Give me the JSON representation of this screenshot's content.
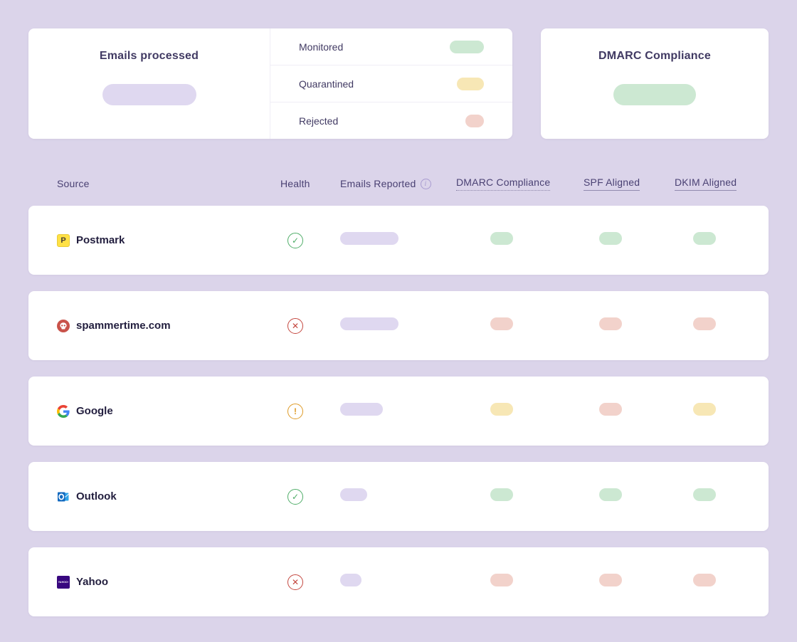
{
  "colors": {
    "page_bg": "#DBD4EA",
    "card_bg": "#FFFFFF",
    "title_text": "#413A63",
    "header_text": "#4A4173",
    "row_text": "#221E3E",
    "pill_lavender": "#DFD8F0",
    "pill_green": "#CCE8D2",
    "pill_yellow": "#F7E7B5",
    "pill_red": "#F2D2CB",
    "health_ok": "#4FAD68",
    "health_error": "#C4473F",
    "health_warning": "#DE9A26"
  },
  "summary": {
    "emails_processed": {
      "title": "Emails processed"
    },
    "breakdown": [
      {
        "label": "Monitored",
        "status": "pass",
        "pill_width": 48
      },
      {
        "label": "Quarantined",
        "status": "warn",
        "pill_width": 38
      },
      {
        "label": "Rejected",
        "status": "fail",
        "pill_width": 26
      }
    ],
    "dmarc_compliance": {
      "title": "DMARC Compliance"
    }
  },
  "table": {
    "columns": {
      "source": "Source",
      "health": "Health",
      "emails": "Emails Reported",
      "dmarc": "DMARC Compliance",
      "spf": "SPF Aligned",
      "dkim": "DKIM Aligned"
    },
    "health_glyphs": {
      "ok": "✓",
      "error": "✕",
      "warning": "!"
    },
    "rows": [
      {
        "source": "Postmark",
        "icon": "postmark-logo",
        "health": "ok",
        "emails_pill_width": 82,
        "dmarc": "pass",
        "spf": "pass",
        "dkim": "pass"
      },
      {
        "source": "spammertime.com",
        "icon": "spammertime-logo",
        "health": "error",
        "emails_pill_width": 82,
        "dmarc": "fail",
        "spf": "fail",
        "dkim": "fail"
      },
      {
        "source": "Google",
        "icon": "google-logo",
        "health": "warning",
        "emails_pill_width": 60,
        "dmarc": "warn",
        "spf": "fail",
        "dkim": "warn"
      },
      {
        "source": "Outlook",
        "icon": "outlook-logo",
        "health": "ok",
        "emails_pill_width": 38,
        "dmarc": "pass",
        "spf": "pass",
        "dkim": "pass"
      },
      {
        "source": "Yahoo",
        "icon": "yahoo-logo",
        "health": "error",
        "emails_pill_width": 30,
        "dmarc": "fail",
        "spf": "fail",
        "dkim": "fail"
      }
    ]
  },
  "icons": {
    "info": "i",
    "postmark_letter": "P",
    "yahoo_text": "YAHOO!"
  }
}
